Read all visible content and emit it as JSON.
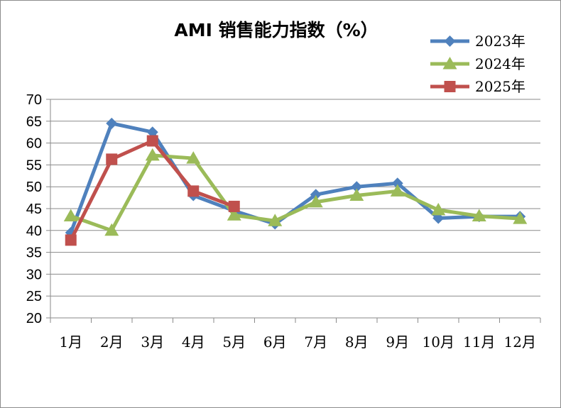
{
  "chart_data": {
    "type": "line",
    "title": "AMI 销售能力指数（%）",
    "xlabel": "",
    "ylabel": "",
    "categories": [
      "1月",
      "2月",
      "3月",
      "4月",
      "5月",
      "6月",
      "7月",
      "8月",
      "9月",
      "10月",
      "11月",
      "12月"
    ],
    "ylim": [
      20,
      70
    ],
    "yticks": [
      20,
      25,
      30,
      35,
      40,
      45,
      50,
      55,
      60,
      65,
      70
    ],
    "grid": true,
    "legend": "top-right",
    "series": [
      {
        "name": "2023年",
        "color": "#4F81BD",
        "marker": "diamond",
        "values": [
          39.5,
          64.5,
          62.5,
          48.0,
          44.5,
          41.5,
          48.2,
          50.0,
          50.8,
          42.8,
          43.2,
          43.2
        ]
      },
      {
        "name": "2024年",
        "color": "#9BBB59",
        "marker": "triangle",
        "values": [
          43.3,
          40.0,
          57.2,
          56.5,
          43.5,
          42.2,
          46.5,
          48.0,
          49.0,
          44.7,
          43.3,
          42.7
        ]
      },
      {
        "name": "2025年",
        "color": "#C0504D",
        "marker": "square",
        "values": [
          37.8,
          56.3,
          60.5,
          49.0,
          45.5,
          null,
          null,
          null,
          null,
          null,
          null,
          null
        ]
      }
    ]
  }
}
